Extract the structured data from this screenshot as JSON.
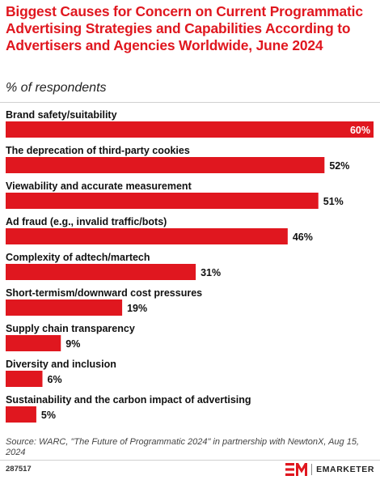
{
  "header": {
    "title": "Biggest Causes for Concern on Current Programmatic Advertising Strategies and Capabilities According to Advertisers and Agencies Worldwide, June 2024",
    "subtitle": "% of respondents"
  },
  "footer": {
    "source": "Source: WARC, \"The Future of Programmatic 2024\" in partnership with NewtonX, Aug 15, 2024",
    "chart_id": "287517",
    "brand_name": "EMARKETER"
  },
  "colors": {
    "accent": "#e0171f",
    "text": "#000000"
  },
  "chart_data": {
    "type": "bar",
    "orientation": "horizontal",
    "title": "Biggest Causes for Concern on Current Programmatic Advertising Strategies and Capabilities According to Advertisers and Agencies Worldwide, June 2024",
    "subtitle": "% of respondents",
    "unit": "%",
    "xlim": [
      0,
      60
    ],
    "grid": false,
    "legend": "none",
    "categories": [
      "Brand safety/suitability",
      "The deprecation of third-party cookies",
      "Viewability and accurate measurement",
      "Ad fraud (e.g., invalid traffic/bots)",
      "Complexity of adtech/martech",
      "Short-termism/downward cost pressures",
      "Supply chain transparency",
      "Diversity and inclusion",
      "Sustainability and the carbon impact of advertising"
    ],
    "values": [
      60,
      52,
      51,
      46,
      31,
      19,
      9,
      6,
      5
    ],
    "data_labels": [
      "60%",
      "52%",
      "51%",
      "46%",
      "31%",
      "19%",
      "9%",
      "6%",
      "5%"
    ],
    "bar_color": "#e0171f"
  }
}
